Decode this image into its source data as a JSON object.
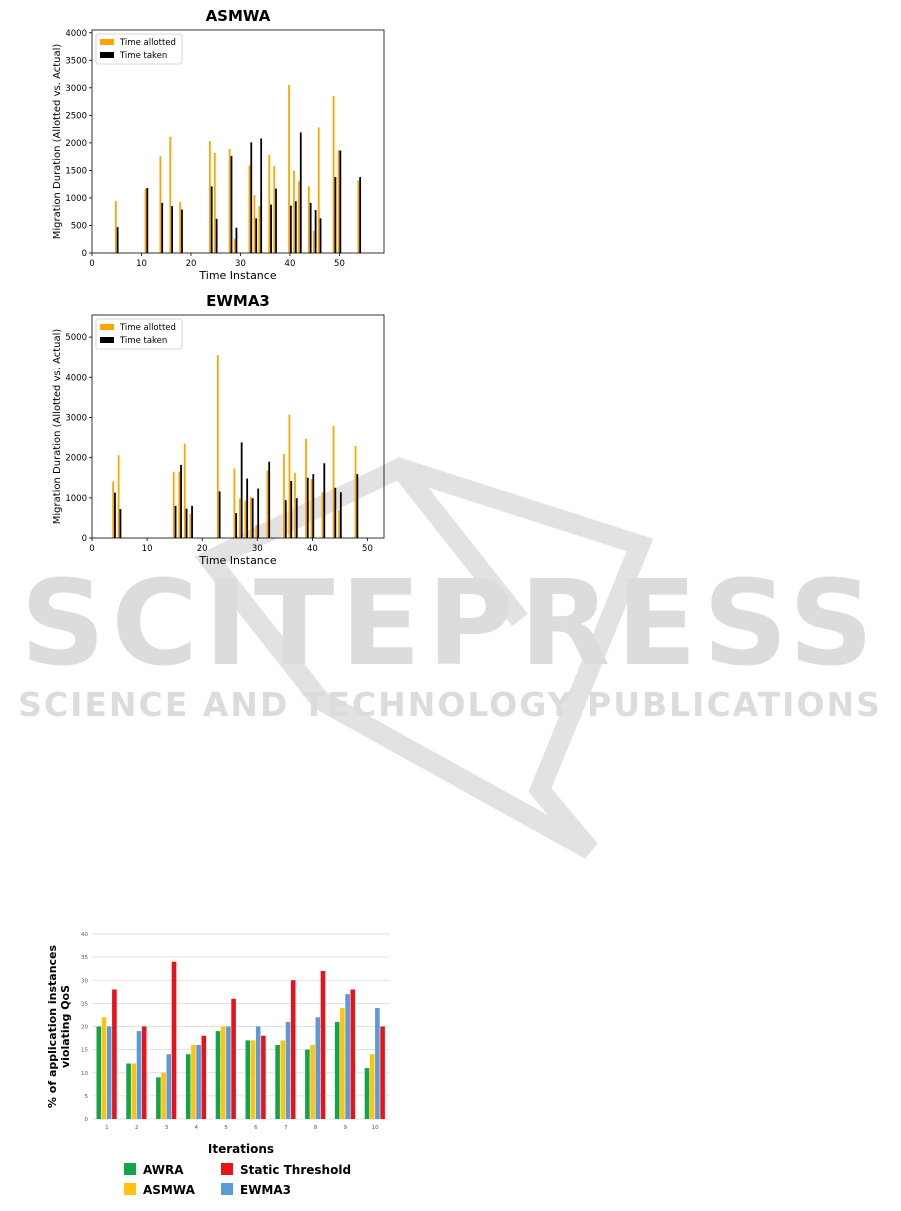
{
  "watermark": {
    "title": "SCITEPRESS",
    "subtitle": "SCIENCE AND TECHNOLOGY PUBLICATIONS"
  },
  "colors": {
    "allotted": "#FFA500",
    "taken": "#000000",
    "awra": "#13A34B",
    "asmwa": "#FFC20E",
    "static": "#E8121B",
    "ewma3": "#5B9BD5",
    "watermark": "#DCDCDC"
  },
  "chart_data": [
    {
      "type": "bar",
      "title": "ASMWA",
      "xlabel": "Time Instance",
      "ylabel": "Migration Duration (Allotted vs. Actual)",
      "xlim": [
        0,
        59
      ],
      "ylim": [
        0,
        4050
      ],
      "xticks": [
        0,
        10,
        20,
        30,
        40,
        50
      ],
      "yticks": [
        0,
        500,
        1000,
        1500,
        2000,
        2500,
        3000,
        3500,
        4000
      ],
      "legend": {
        "position": "top-left"
      },
      "series": [
        {
          "name": "Time allotted",
          "color": "#FFA500",
          "x": [
            5,
            11,
            14,
            16,
            18,
            24,
            25,
            28,
            29,
            32,
            33,
            34,
            36,
            37,
            40,
            41,
            42,
            44,
            45,
            46,
            49,
            50,
            54
          ],
          "values": [
            940,
            1170,
            1760,
            2110,
            930,
            2030,
            1820,
            1890,
            260,
            1590,
            1050,
            850,
            1780,
            1580,
            3050,
            1490,
            1300,
            1210,
            400,
            2280,
            2850,
            1870,
            1320
          ]
        },
        {
          "name": "Time taken",
          "color": "#000000",
          "x": [
            5,
            11,
            14,
            16,
            18,
            24,
            25,
            28,
            29,
            32,
            33,
            34,
            36,
            37,
            40,
            41,
            42,
            44,
            45,
            46,
            49,
            50,
            54
          ],
          "values": [
            470,
            1180,
            910,
            850,
            790,
            1210,
            620,
            1760,
            460,
            2010,
            630,
            2080,
            880,
            1170,
            860,
            940,
            2190,
            910,
            780,
            630,
            1380,
            1860,
            1380
          ]
        }
      ]
    },
    {
      "type": "bar",
      "title": "EWMA3",
      "xlabel": "Time Instance",
      "ylabel": "Migration Duration (Allotted vs. Actual)",
      "xlim": [
        0,
        53
      ],
      "ylim": [
        0,
        5550
      ],
      "xticks": [
        0,
        10,
        20,
        30,
        40,
        50
      ],
      "yticks": [
        0,
        1000,
        2000,
        3000,
        4000,
        5000
      ],
      "legend": {
        "position": "top-left"
      },
      "series": [
        {
          "name": "Time allotted",
          "color": "#FFA500",
          "x": [
            4,
            5,
            15,
            16,
            17,
            18,
            23,
            26,
            27,
            28,
            29,
            30,
            32,
            35,
            36,
            37,
            39,
            40,
            42,
            44,
            45,
            48
          ],
          "values": [
            1410,
            2060,
            1650,
            1650,
            2350,
            600,
            4550,
            1730,
            980,
            930,
            1020,
            320,
            1680,
            2090,
            3070,
            1620,
            2470,
            1460,
            1140,
            2790,
            700,
            2290
          ]
        },
        {
          "name": "Time taken",
          "color": "#000000",
          "x": [
            4,
            5,
            15,
            16,
            17,
            18,
            23,
            26,
            27,
            28,
            29,
            30,
            32,
            35,
            36,
            37,
            39,
            40,
            42,
            44,
            45,
            48
          ],
          "values": [
            1130,
            720,
            800,
            1820,
            730,
            800,
            1160,
            620,
            2380,
            1480,
            990,
            1230,
            1900,
            940,
            1420,
            990,
            1500,
            1590,
            1860,
            1250,
            1140,
            1590
          ]
        }
      ]
    },
    {
      "type": "bar",
      "title": "",
      "xlabel": "Iterations",
      "ylabel": "% of application instances violating QoS",
      "categories": [
        "1",
        "2",
        "3",
        "4",
        "5",
        "6",
        "7",
        "8",
        "9",
        "10"
      ],
      "ylim": [
        0,
        40
      ],
      "yticks": [
        0,
        5,
        10,
        15,
        20,
        25,
        30,
        35,
        40
      ],
      "grid": true,
      "legend": {
        "position": "bottom"
      },
      "series": [
        {
          "name": "AWRA",
          "color": "#13A34B",
          "values": [
            20,
            12,
            9,
            14,
            19,
            17,
            16,
            15,
            21,
            11
          ]
        },
        {
          "name": "ASMWA",
          "color": "#FFC20E",
          "values": [
            22,
            12,
            10,
            16,
            20,
            17,
            17,
            16,
            24,
            14
          ]
        },
        {
          "name": "EWMA3",
          "color": "#5B9BD5",
          "values": [
            20,
            19,
            14,
            16,
            20,
            20,
            21,
            22,
            27,
            24
          ]
        },
        {
          "name": "Static Threshold",
          "color": "#E8121B",
          "values": [
            28,
            20,
            34,
            18,
            26,
            18,
            30,
            32,
            28,
            20
          ]
        }
      ]
    }
  ]
}
